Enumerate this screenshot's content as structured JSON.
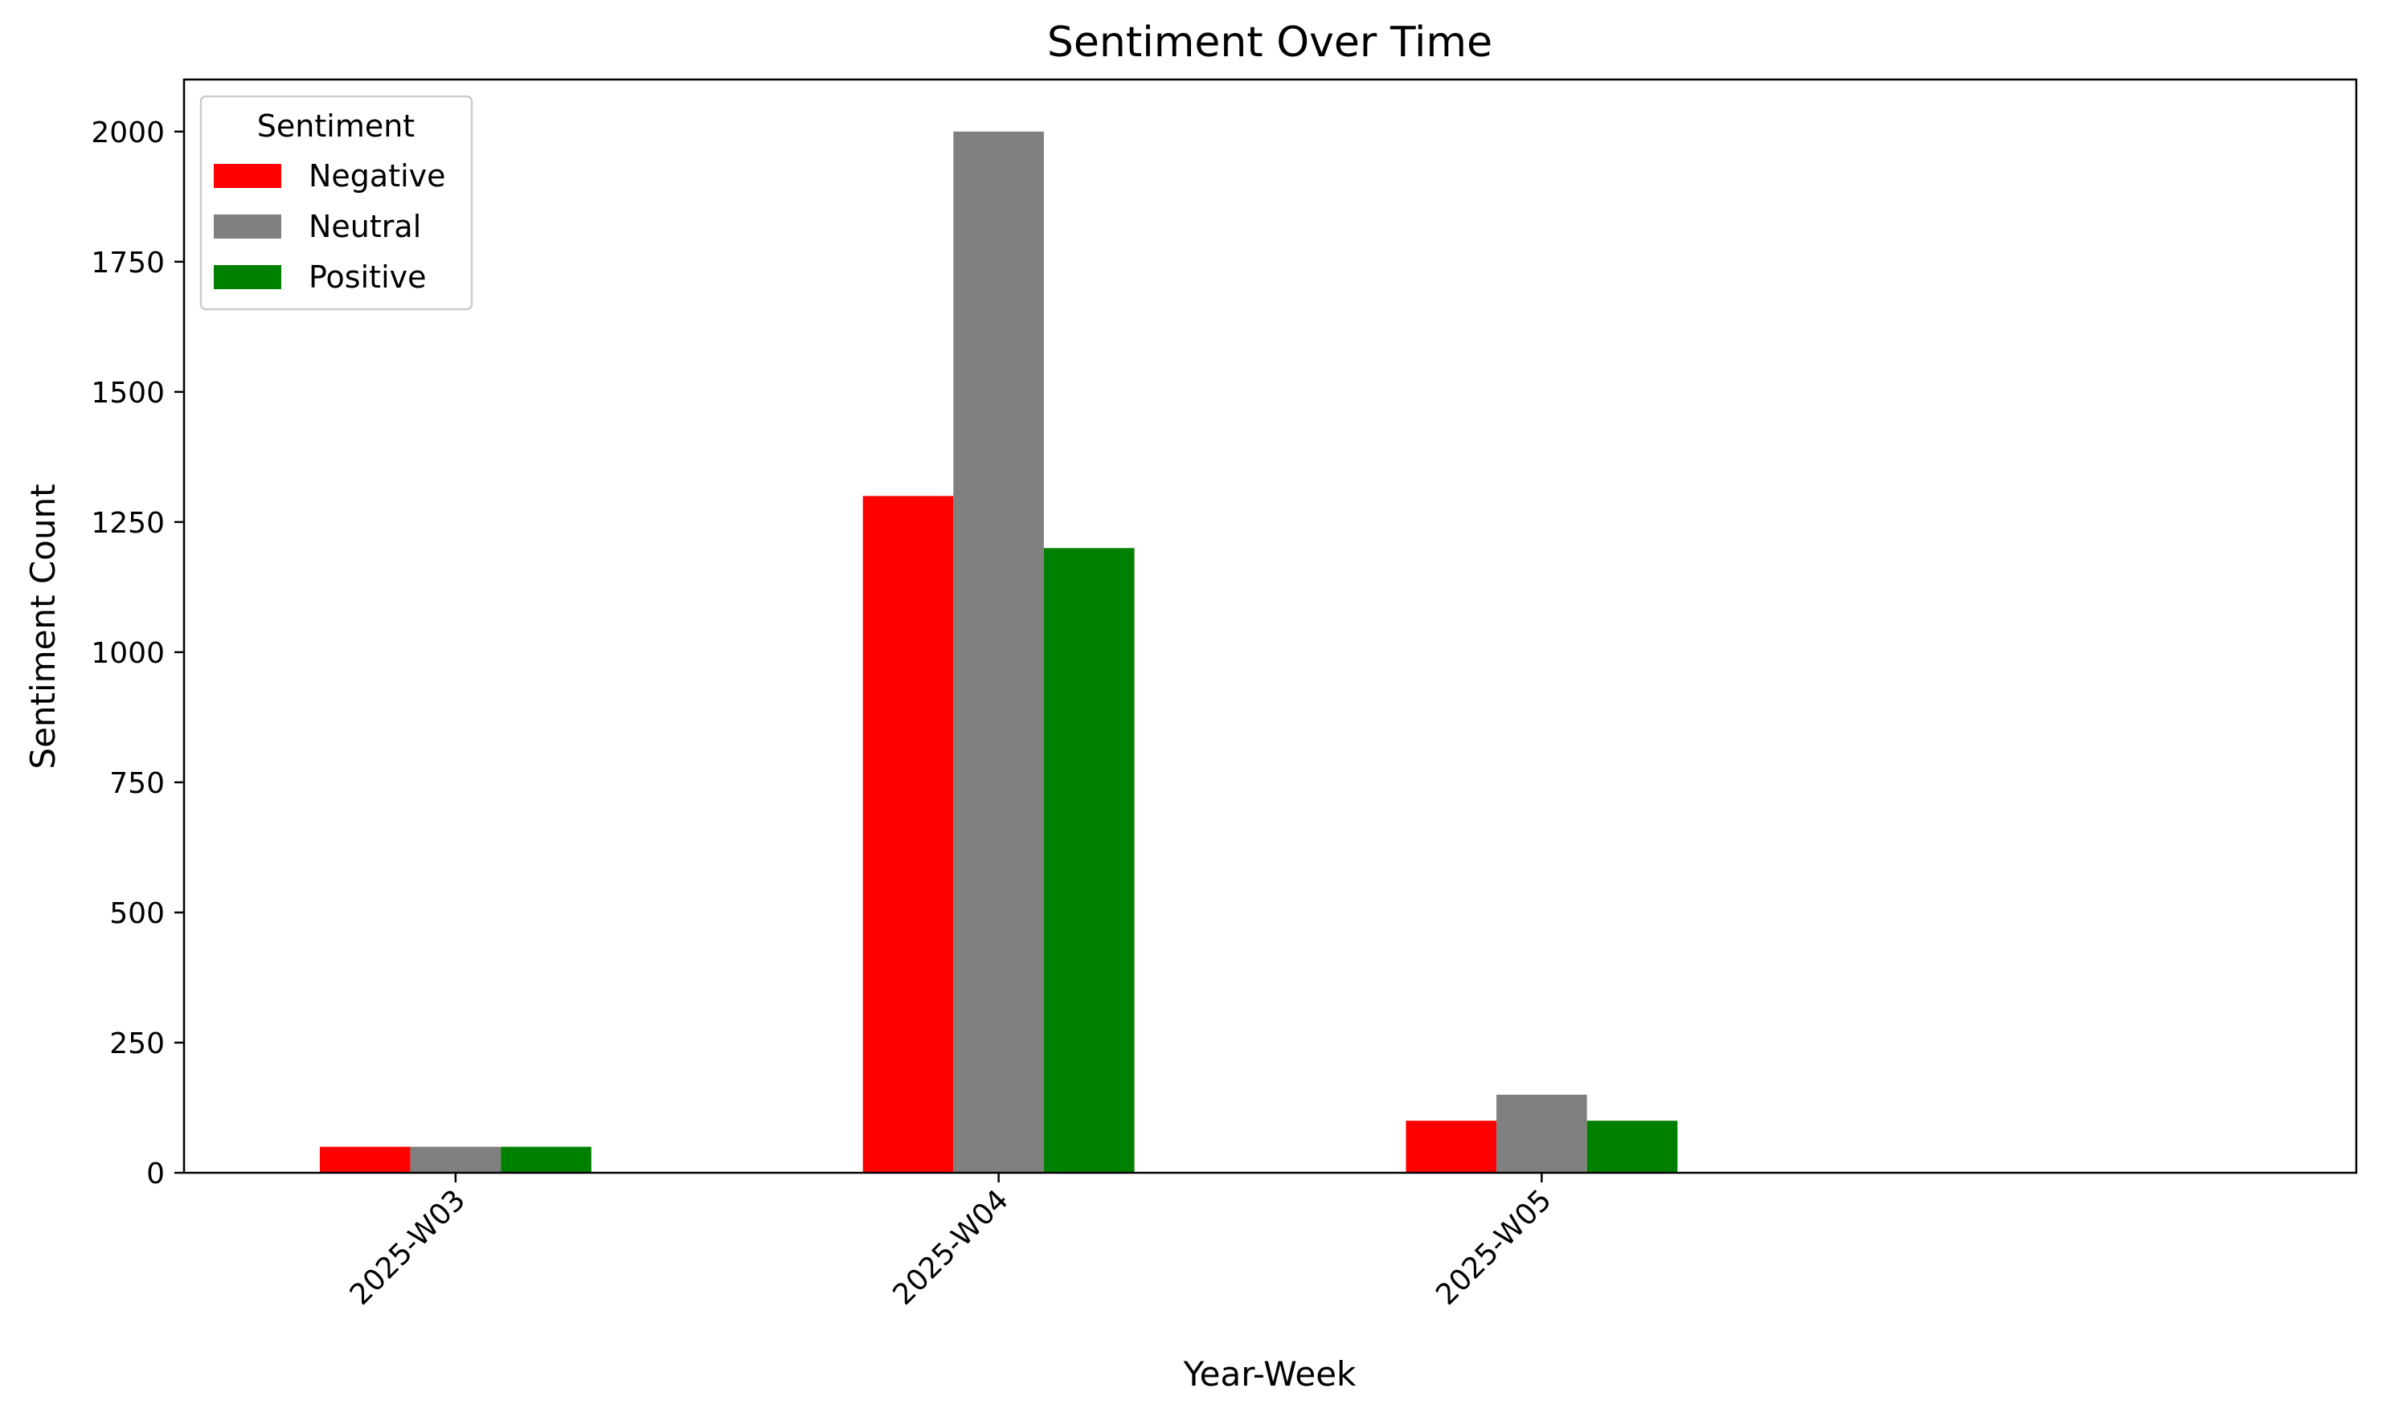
{
  "chart_data": {
    "type": "bar",
    "title": "Sentiment Over Time",
    "xlabel": "Year-Week",
    "ylabel": "Sentiment Count",
    "categories": [
      "2025-W03",
      "2025-W04",
      "2025-W05"
    ],
    "series": [
      {
        "name": "Negative",
        "color": "#ff0000",
        "values": [
          50,
          1300,
          100
        ]
      },
      {
        "name": "Neutral",
        "color": "#808080",
        "values": [
          50,
          2000,
          150
        ]
      },
      {
        "name": "Positive",
        "color": "#008000",
        "values": [
          50,
          1200,
          100
        ]
      }
    ],
    "ylim": [
      0,
      2100
    ],
    "yticks": [
      0,
      250,
      500,
      750,
      1000,
      1250,
      1500,
      1750,
      2000
    ],
    "legend": {
      "title": "Sentiment",
      "placement": "top-left"
    },
    "grid": false
  }
}
